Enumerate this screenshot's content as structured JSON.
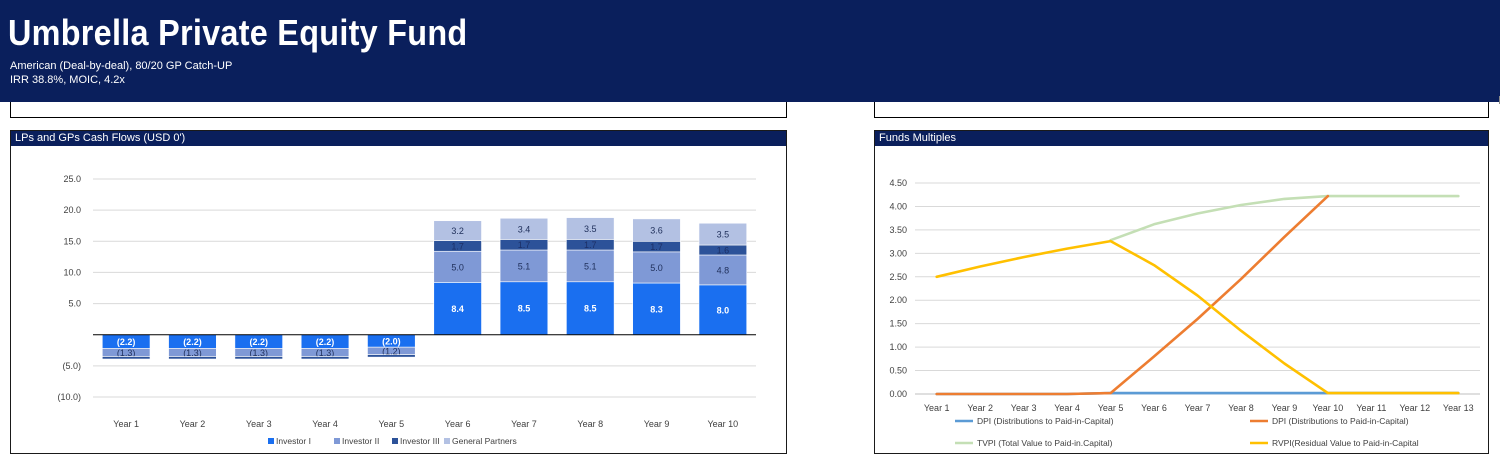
{
  "header": {
    "title": "Umbrella Private Equity Fund",
    "subtitle1": "American (Deal-by-deal), 80/20 GP Catch-UP",
    "subtitle2": "IRR 38.8%, MOIC, 4.2x"
  },
  "colors": {
    "header_bg": "#0a1f5c",
    "investor1": "#1a6ff0",
    "investor2": "#7f99d6",
    "investor3": "#2c5299",
    "general_partners": "#b3c1e3",
    "dpi_blue": "#5b9bd5",
    "dpi_orange": "#ed7d31",
    "tvpi": "#c4dfb5",
    "rvpi": "#ffc000"
  },
  "chart_data": [
    {
      "type": "bar",
      "stacked": true,
      "title": "LPs and GPs Cash Flows  (USD 0')",
      "categories": [
        "Year 1",
        "Year 2",
        "Year 3",
        "Year 4",
        "Year 5",
        "Year 6",
        "Year 7",
        "Year 8",
        "Year 9",
        "Year 10"
      ],
      "y_ticks": [
        "25.0",
        "20.0",
        "15.0",
        "10.0",
        "5.0",
        "",
        "(5.0)",
        "(10.0)"
      ],
      "y_tick_values": [
        25,
        20,
        15,
        10,
        5,
        0,
        -5,
        -10
      ],
      "ylim": [
        -10,
        25
      ],
      "grid": true,
      "legend_position": "bottom",
      "series": [
        {
          "name": "Investor I",
          "values": [
            -2.2,
            -2.2,
            -2.2,
            -2.2,
            -2.0,
            8.4,
            8.5,
            8.5,
            8.3,
            8.0
          ],
          "labels": [
            "(2.2)",
            "(2.2)",
            "(2.2)",
            "(2.2)",
            "(2.0)",
            "8.4",
            "8.5",
            "8.5",
            "8.3",
            "8.0"
          ]
        },
        {
          "name": "Investor II",
          "values": [
            -1.3,
            -1.3,
            -1.3,
            -1.3,
            -1.2,
            5.0,
            5.1,
            5.1,
            5.0,
            4.8
          ],
          "labels": [
            "(1.3)",
            "(1.3)",
            "(1.3)",
            "(1.3)",
            "(1.2)",
            "5.0",
            "5.1",
            "5.1",
            "5.0",
            "4.8"
          ]
        },
        {
          "name": "Investor III",
          "values": [
            -0.4,
            -0.4,
            -0.4,
            -0.4,
            -0.4,
            1.7,
            1.7,
            1.7,
            1.7,
            1.6
          ],
          "labels": [
            "",
            "",
            "",
            "",
            "",
            "1.7",
            "1.7",
            "1.7",
            "1.7",
            "1.6"
          ]
        },
        {
          "name": "General Partners",
          "values": [
            0,
            0,
            0,
            0,
            0,
            3.2,
            3.4,
            3.5,
            3.6,
            3.5
          ],
          "labels": [
            "",
            "",
            "",
            "",
            "",
            "3.2",
            "3.4",
            "3.5",
            "3.6",
            "3.5"
          ]
        }
      ]
    },
    {
      "type": "line",
      "title": "Funds Multiples",
      "categories": [
        "Year 1",
        "Year 2",
        "Year 3",
        "Year 4",
        "Year 5",
        "Year 6",
        "Year 7",
        "Year 8",
        "Year 9",
        "Year 10",
        "Year 11",
        "Year 12",
        "Year 13"
      ],
      "y_ticks": [
        "4.50",
        "4.00",
        "3.50",
        "3.00",
        "2.50",
        "2.00",
        "1.50",
        "1.00",
        "0.50",
        "0.00"
      ],
      "y_tick_values": [
        4.5,
        4.0,
        3.5,
        3.0,
        2.5,
        2.0,
        1.5,
        1.0,
        0.5,
        0.0
      ],
      "ylim": [
        0,
        4.5
      ],
      "grid": true,
      "legend_position": "bottom",
      "series": [
        {
          "name": "DPI (Distributions to Paid-in-Capital)",
          "values": [
            0,
            0,
            0,
            0,
            0.02,
            0.02,
            0.02,
            0.02,
            0.02,
            0.02,
            0.02,
            0.02,
            0.02
          ]
        },
        {
          "name": "DPI (Distributions to Paid-in-Capital)",
          "values": [
            0,
            0,
            0,
            0,
            0.02,
            0.8,
            1.6,
            2.45,
            3.35,
            4.22,
            null,
            null,
            null
          ]
        },
        {
          "name": "TVPI (Total Value to Paid-in.Capital)",
          "values": [
            null,
            null,
            null,
            null,
            3.28,
            3.62,
            3.85,
            4.03,
            4.16,
            4.22,
            4.22,
            4.22,
            4.22
          ]
        },
        {
          "name": "RVPI(Residual Value to Paid-in-Capital",
          "values": [
            2.5,
            2.72,
            2.92,
            3.1,
            3.26,
            2.75,
            2.1,
            1.35,
            0.65,
            0.02,
            0.02,
            0.02,
            0.02
          ]
        }
      ]
    }
  ]
}
